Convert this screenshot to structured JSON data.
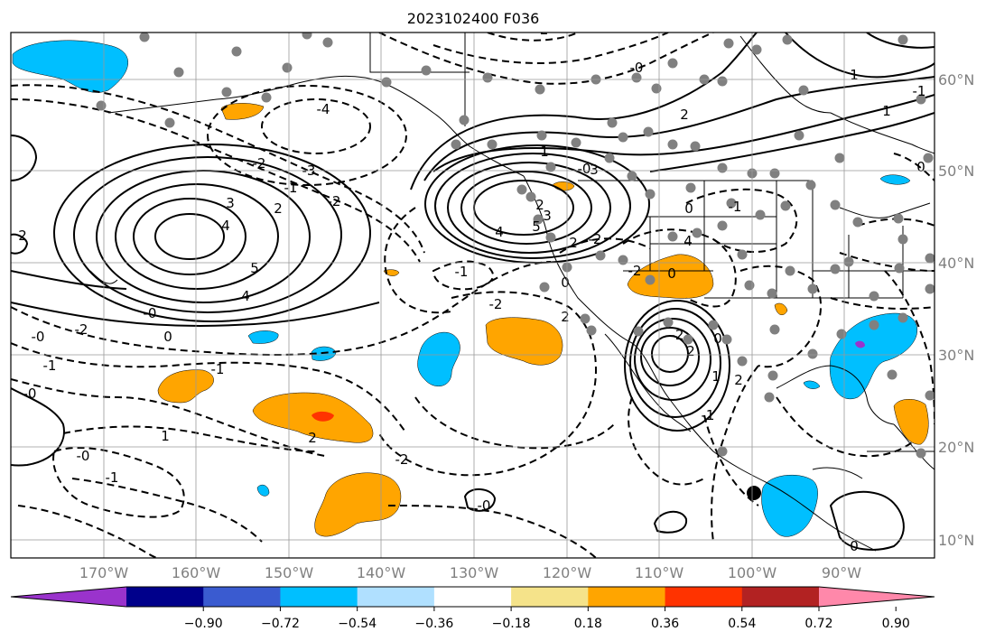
{
  "map": {
    "title": "2023102400 F036",
    "lat_labels": [
      "60°N",
      "50°N",
      "40°N",
      "30°N",
      "20°N",
      "10°N"
    ],
    "lon_labels": [
      "170°W",
      "160°W",
      "150°W",
      "140°W",
      "130°W",
      "120°W",
      "110°W",
      "100°W",
      "90°W"
    ]
  },
  "colorbar": {
    "ticks": [
      "−0.90",
      "−0.72",
      "−0.54",
      "−0.36",
      "−0.18",
      "0.18",
      "0.36",
      "0.54",
      "0.72",
      "0.90"
    ],
    "colors": [
      "#9a33cc",
      "#00008b",
      "#3a5bd0",
      "#00bfff",
      "#b0e0ff",
      "#ffffff",
      "#f5e38a",
      "#ffa500",
      "#ff3300",
      "#b22222",
      "#ff88aa"
    ]
  },
  "contour_labels": [
    "-4",
    "-3",
    "-2",
    "-2",
    "-1",
    "2",
    "3",
    "4",
    "5",
    "4",
    "2",
    "-0",
    "0",
    "-0",
    "-1",
    "-2",
    "-0",
    "-0",
    "-1",
    "2",
    "1",
    "-2",
    "-1",
    "-2",
    "2",
    "4",
    "5",
    "3",
    "2",
    "-2",
    "2",
    "0",
    "-1",
    "-2",
    "0",
    "4",
    "-2",
    "2",
    "0",
    "1",
    "-1",
    "2",
    "0",
    "-0",
    "1",
    "3",
    "2",
    "1",
    "-1",
    "1",
    "-2",
    "-0",
    "0",
    "-1",
    "-0",
    "0"
  ],
  "fill_colors": {
    "orange": "#ffa500",
    "cyan": "#00bfff",
    "red": "#ff3300",
    "purple": "#9a33cc"
  }
}
